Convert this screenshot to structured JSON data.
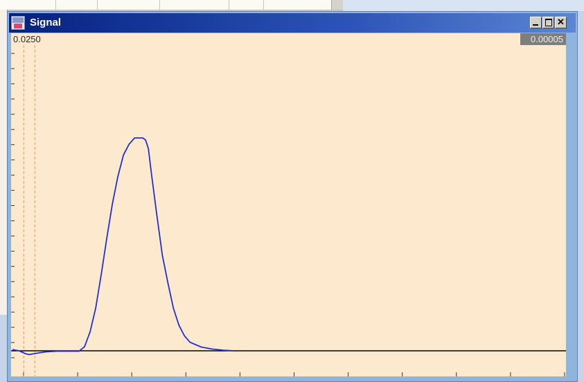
{
  "window": {
    "title": "Signal",
    "readout_left": "0.0250",
    "readout_right": "0.00005",
    "buttons": {
      "minimize_icon": "minimize-icon",
      "maximize_icon": "maximize-icon",
      "close_icon": "close-icon"
    }
  },
  "colors": {
    "plot_background": "#fde9cd",
    "trace": "#1f2fd0",
    "baseline": "#000000",
    "cursor_lines": "#f5a56a",
    "title_bar_start": "#06207f",
    "title_bar_end": "#5b86d2",
    "window_frame": "#8fb5dd"
  },
  "signal": {
    "trace_points": [
      [
        0.0,
        0.006
      ],
      [
        0.012,
        0.0
      ],
      [
        0.022,
        -0.012
      ],
      [
        0.03,
        -0.018
      ],
      [
        0.04,
        -0.013
      ],
      [
        0.06,
        -0.005
      ],
      [
        0.08,
        -0.002
      ],
      [
        0.12,
        -0.002
      ],
      [
        0.13,
        0.02
      ],
      [
        0.14,
        0.09
      ],
      [
        0.15,
        0.2
      ],
      [
        0.16,
        0.36
      ],
      [
        0.17,
        0.53
      ],
      [
        0.18,
        0.69
      ],
      [
        0.19,
        0.82
      ],
      [
        0.2,
        0.92
      ],
      [
        0.21,
        0.97
      ],
      [
        0.22,
        1.0
      ],
      [
        0.235,
        1.0
      ],
      [
        0.24,
        0.99
      ],
      [
        0.245,
        0.95
      ],
      [
        0.25,
        0.84
      ],
      [
        0.26,
        0.64
      ],
      [
        0.27,
        0.45
      ],
      [
        0.28,
        0.32
      ],
      [
        0.29,
        0.2
      ],
      [
        0.3,
        0.12
      ],
      [
        0.31,
        0.07
      ],
      [
        0.32,
        0.04
      ],
      [
        0.34,
        0.018
      ],
      [
        0.36,
        0.008
      ],
      [
        0.38,
        0.003
      ],
      [
        0.4,
        0.0
      ]
    ],
    "cursor_positions": [
      0.008,
      0.028
    ],
    "y_ticks": 21,
    "x_ticks": 11
  }
}
